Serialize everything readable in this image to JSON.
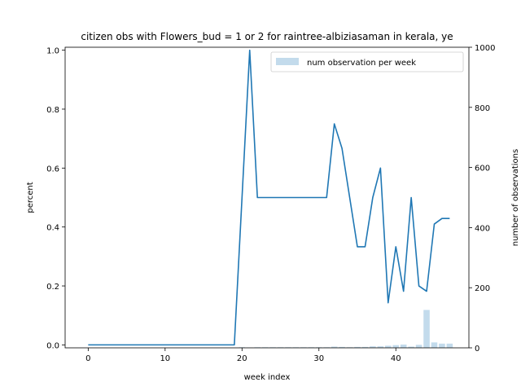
{
  "chart_data": {
    "type": "line",
    "title": "citizen obs with Flowers_bud = 1 or 2 for raintree-albiziasaman in kerala, ye",
    "xlabel": "week index",
    "ylabel": "percent",
    "ylabel_right": "number of observations",
    "xlim": [
      -3,
      49.5
    ],
    "ylim": [
      -0.01,
      1.01
    ],
    "ylim_right": [
      0,
      1000
    ],
    "xticks": [
      0,
      10,
      20,
      30,
      40
    ],
    "yticks": [
      0.0,
      0.2,
      0.4,
      0.6,
      0.8,
      1.0
    ],
    "yticks_right": [
      0,
      200,
      400,
      600,
      800,
      1000
    ],
    "legend_position": "top-right",
    "series": [
      {
        "kind": "line",
        "color": "#1f77b4",
        "x": [
          0,
          1,
          2,
          3,
          4,
          5,
          6,
          7,
          8,
          9,
          10,
          11,
          12,
          13,
          14,
          15,
          16,
          17,
          18,
          19,
          20,
          21,
          22,
          23,
          24,
          25,
          26,
          27,
          28,
          29,
          30,
          31,
          32,
          33,
          34,
          35,
          36,
          37,
          38,
          39,
          40,
          41,
          42,
          43,
          44,
          45,
          46,
          47
        ],
        "values": [
          0,
          0,
          0,
          0,
          0,
          0,
          0,
          0,
          0,
          0,
          0,
          0,
          0,
          0,
          0,
          0,
          0,
          0,
          0,
          0,
          0.5,
          1.0,
          0.5,
          0.5,
          0.5,
          0.5,
          0.5,
          0.5,
          0.5,
          0.5,
          0.5,
          0.5,
          0.75,
          0.667,
          0.5,
          0.333,
          0.333,
          0.5,
          0.6,
          0.143,
          0.333,
          0.182,
          0.5,
          0.2,
          0.182,
          0.41,
          0.429,
          0.429
        ]
      },
      {
        "kind": "bar",
        "name": "num observation per week",
        "color": "#c3dbec",
        "x": [
          20,
          21,
          22,
          23,
          24,
          25,
          26,
          27,
          28,
          29,
          30,
          31,
          32,
          33,
          34,
          35,
          36,
          37,
          38,
          39,
          40,
          41,
          42,
          43,
          44,
          45,
          46,
          47
        ],
        "values": [
          2,
          1,
          2,
          2,
          2,
          2,
          2,
          2,
          2,
          2,
          2,
          2,
          4,
          3,
          2,
          3,
          3,
          5,
          5,
          7,
          9,
          11,
          4,
          10,
          126,
          18,
          14,
          14
        ]
      }
    ]
  }
}
